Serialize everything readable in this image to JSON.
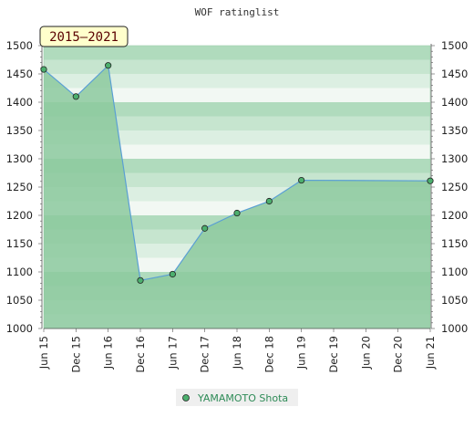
{
  "chart_data": {
    "type": "area",
    "title": "WOF ratinglist",
    "period_label": "2015–2021",
    "x_categories": [
      "Jun 15",
      "Dec 15",
      "Jun 16",
      "Dec 16",
      "Jun 17",
      "Dec 17",
      "Jun 18",
      "Dec 18",
      "Jun 19",
      "Dec 19",
      "Jun 20",
      "Dec 20",
      "Jun 21"
    ],
    "ylim": [
      1000,
      1500
    ],
    "y_ticks": [
      1000,
      1050,
      1100,
      1150,
      1200,
      1250,
      1300,
      1350,
      1400,
      1450,
      1500
    ],
    "grid": true,
    "legend_position": "bottom-center",
    "series": [
      {
        "name": "YAMAMOTO Shota",
        "color": "#5a9fd4",
        "fill": "#8cc99e",
        "marker_color": "#4caf6e",
        "points": [
          {
            "x": "Jun 15",
            "y": 1458
          },
          {
            "x": "Dec 15",
            "y": 1410
          },
          {
            "x": "Jun 16",
            "y": 1465
          },
          {
            "x": "Dec 16",
            "y": 1085
          },
          {
            "x": "Jun 17",
            "y": 1096
          },
          {
            "x": "Dec 17",
            "y": 1177
          },
          {
            "x": "Jun 18",
            "y": 1204
          },
          {
            "x": "Dec 18",
            "y": 1225
          },
          {
            "x": "Jun 19",
            "y": 1262
          },
          {
            "x": "Jun 21",
            "y": 1261
          }
        ]
      }
    ]
  }
}
